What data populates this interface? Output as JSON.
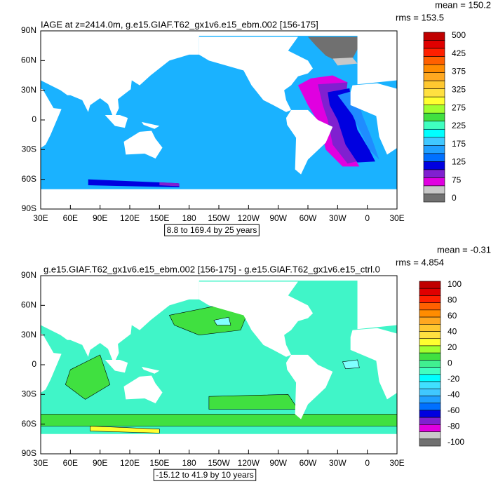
{
  "panels": [
    {
      "title": "IAGE at z=2414.0m, g.e15.GIAF.T62_gx1v6.e15_ebm.002 [156-175]",
      "mean": "mean = 150.2",
      "rms": "rms = 153.5",
      "info": "8.8 to 169.4 by 25 years",
      "colorbar": {
        "labels": [
          "500",
          "425",
          "375",
          "325",
          "275",
          "225",
          "175",
          "125",
          "75",
          "0"
        ],
        "colors": [
          "#c00000",
          "#e00000",
          "#ff2000",
          "#ff6000",
          "#ff8c00",
          "#ffa820",
          "#ffc830",
          "#ffe040",
          "#ffff30",
          "#a0ff30",
          "#40e040",
          "#40ffc0",
          "#00ffff",
          "#40c8ff",
          "#20a0ff",
          "#0070ff",
          "#0000e0",
          "#8020d0",
          "#e000e0",
          "#c8c8c8",
          "#707070"
        ]
      }
    },
    {
      "title": "g.e15.GIAF.T62_gx1v6.e15_ebm.002 [156-175] - g.e15.GIAF.T62_gx1v6.e15_ctrl.0",
      "mean": "mean = -0.31",
      "rms": "rms = 4.854",
      "info": "-15.12 to 41.9 by 10 years",
      "colorbar": {
        "labels": [
          "100",
          "80",
          "60",
          "40",
          "20",
          "0",
          "-20",
          "-40",
          "-60",
          "-80",
          "-100"
        ],
        "colors": [
          "#c00000",
          "#e00000",
          "#ff2000",
          "#ff6000",
          "#ff8c00",
          "#ffa820",
          "#ffc830",
          "#ffe040",
          "#ffff30",
          "#a0ff30",
          "#40e040",
          "#40f090",
          "#40ffc0",
          "#00ffff",
          "#40e0ff",
          "#40c8ff",
          "#20a0ff",
          "#0070ff",
          "#0000e0",
          "#8020d0",
          "#e000e0",
          "#c8c8c8",
          "#707070"
        ]
      }
    }
  ],
  "lat_labels": [
    "90N",
    "60N",
    "30N",
    "0",
    "30S",
    "60S",
    "90S"
  ],
  "lon_labels": [
    "30E",
    "60E",
    "90E",
    "120E",
    "150E",
    "180",
    "150W",
    "120W",
    "90W",
    "60W",
    "30W",
    "0",
    "30E"
  ]
}
